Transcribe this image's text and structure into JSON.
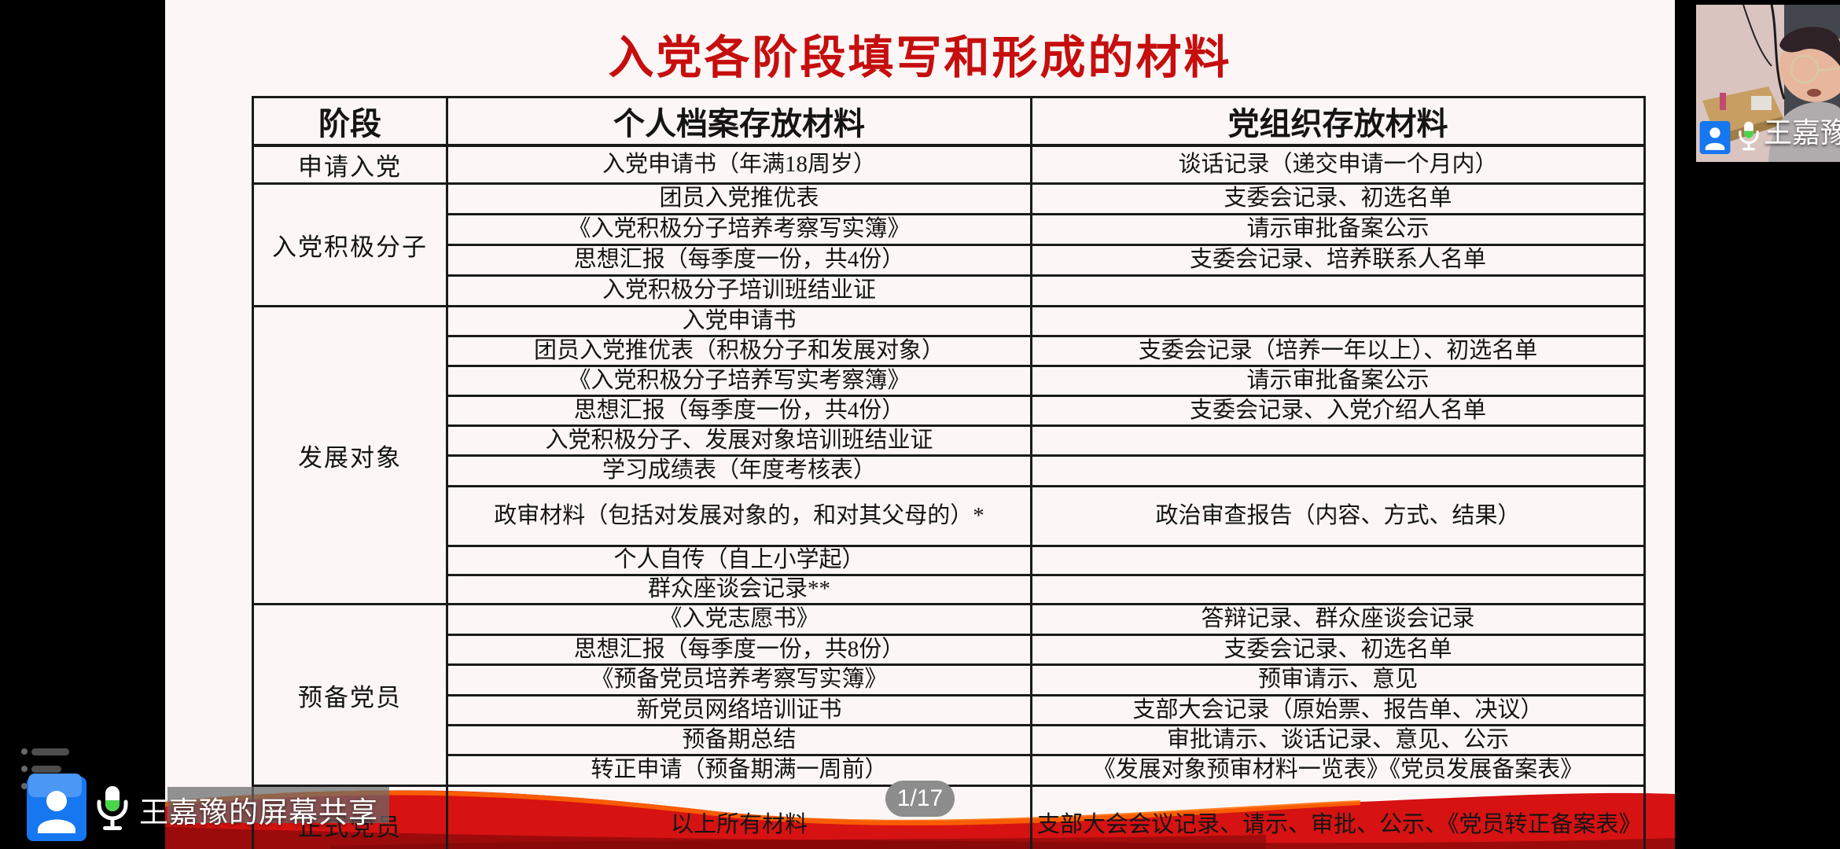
{
  "meeting": {
    "share_label": "王嘉豫的屏幕共享",
    "participant_name": "王嘉豫",
    "page_indicator": "1/17"
  },
  "slide": {
    "title": "入党各阶段填写和形成的材料",
    "table": {
      "headers": [
        "阶段",
        "个人档案存放材料",
        "党组织存放材料"
      ],
      "sections": [
        {
          "stage": "申请入党",
          "rows": [
            [
              "入党申请书（年满18周岁）",
              "谈话记录（递交申请一个月内）"
            ]
          ]
        },
        {
          "stage": "入党积极分子",
          "rows": [
            [
              "团员入党推优表",
              "支委会记录、初选名单"
            ],
            [
              "《入党积极分子培养考察写实簿》",
              "请示审批备案公示"
            ],
            [
              "思想汇报（每季度一份，共4份）",
              "支委会记录、培养联系人名单"
            ],
            [
              "入党积极分子培训班结业证",
              ""
            ]
          ]
        },
        {
          "stage": "发展对象",
          "rows": [
            [
              "入党申请书",
              ""
            ],
            [
              "团员入党推优表（积极分子和发展对象）",
              "支委会记录（培养一年以上）、初选名单"
            ],
            [
              "《入党积极分子培养写实考察簿》",
              "请示审批备案公示"
            ],
            [
              "思想汇报（每季度一份，共4份）",
              "支委会记录、入党介绍人名单"
            ],
            [
              "入党积极分子、发展对象培训班结业证",
              ""
            ],
            [
              "学习成绩表（年度考核表）",
              ""
            ],
            [
              "政审材料（包括对发展对象的，和对其父母的）*",
              "政治审查报告（内容、方式、结果）"
            ],
            [
              "个人自传（自上小学起）",
              ""
            ],
            [
              "群众座谈会记录**",
              ""
            ]
          ]
        },
        {
          "stage": "预备党员",
          "rows": [
            [
              "《入党志愿书》",
              "答辩记录、群众座谈会记录"
            ],
            [
              "思想汇报（每季度一份，共8份）",
              "支委会记录、初选名单"
            ],
            [
              "《预备党员培养考察写实簿》",
              "预审请示、意见"
            ],
            [
              "新党员网络培训证书",
              "支部大会记录（原始票、报告单、决议）"
            ],
            [
              "预备期总结",
              "审批请示、谈话记录、意见、公示"
            ],
            [
              "转正申请（预备期满一周前）",
              "《发展对象预审材料一览表》《党员发展备案表》"
            ]
          ]
        },
        {
          "stage": "正式党员",
          "rows": [
            [
              "以上所有材料",
              "支部大会会议记录、请示、审批、公示、《党员转正备案表》"
            ]
          ]
        }
      ]
    }
  },
  "icons": {
    "share_avatar": "person-avatar-icon",
    "microphone": "microphone-icon",
    "participants_list": "list-icon"
  },
  "colors": {
    "title_red": "#c60e0e",
    "ribbon_red": "#d61212",
    "ribbon_dark": "#9c0b0b",
    "ribbon_highlight": "#ff6a00",
    "avatar_blue": "#1677f0",
    "mic_green": "#4cd34c",
    "badge_gray": "#8d8d8d"
  }
}
